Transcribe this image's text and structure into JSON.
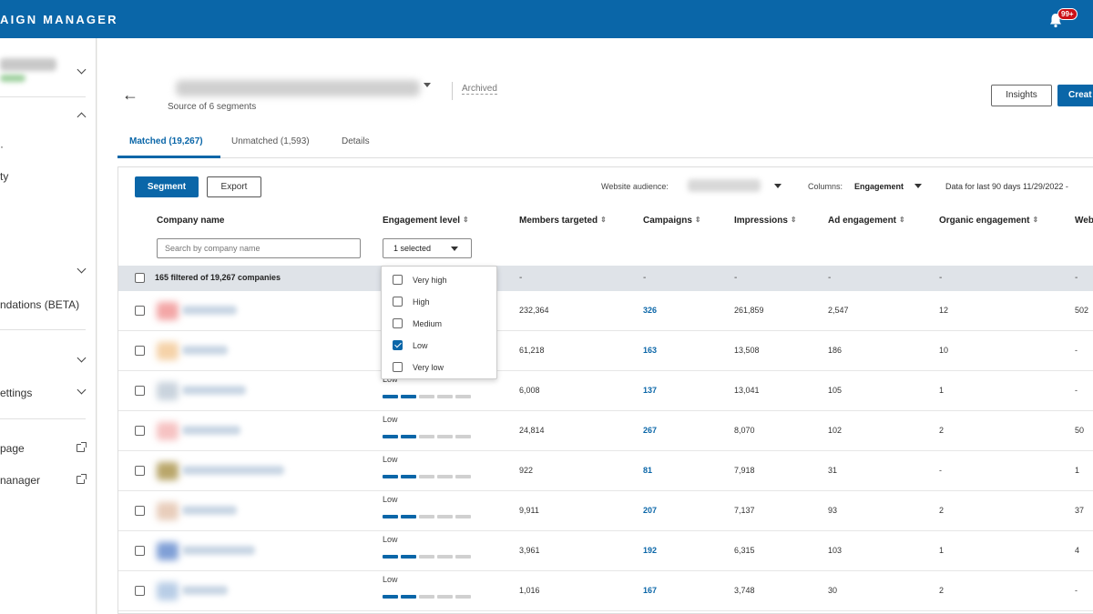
{
  "app": {
    "brand": "AIGN MANAGER",
    "notification_badge": "99+",
    "accent": "#0a66a8"
  },
  "sidebar": {
    "items": [
      {
        "label": "ndations (BETA)"
      },
      {
        "label": "ettings"
      },
      {
        "label": "page"
      },
      {
        "label": "nanager"
      },
      {
        "label": "ty"
      }
    ]
  },
  "header": {
    "archived": "Archived",
    "source": "Source of 6 segments",
    "insights_label": "Insights",
    "create_label": "Creat"
  },
  "tabs": [
    {
      "label": "Matched (19,267)"
    },
    {
      "label": "Unmatched (1,593)"
    },
    {
      "label": "Details"
    }
  ],
  "toolbar": {
    "segment_label": "Segment",
    "export_label": "Export",
    "website_audience_label": "Website audience:",
    "columns_label": "Columns:",
    "columns_value": "Engagement",
    "data_range": "Data for last 90 days 11/29/2022 -"
  },
  "table": {
    "columns": [
      "Company name",
      "Engagement level",
      "Members targeted",
      "Campaigns",
      "Impressions",
      "Ad engagement",
      "Organic engagement",
      "Web"
    ],
    "search_placeholder": "Search by company name",
    "engagement_filter_value": "1 selected",
    "filter_summary": "165 filtered of 19,267 companies",
    "dash": "-",
    "rows": [
      {
        "engagement": "",
        "members": "232,364",
        "campaigns": "326",
        "impressions": "261,859",
        "ad": "2,547",
        "organic": "12",
        "web": "502"
      },
      {
        "engagement": "",
        "members": "61,218",
        "campaigns": "163",
        "impressions": "13,508",
        "ad": "186",
        "organic": "10",
        "web": "-"
      },
      {
        "engagement": "Low",
        "members": "6,008",
        "campaigns": "137",
        "impressions": "13,041",
        "ad": "105",
        "organic": "1",
        "web": "-"
      },
      {
        "engagement": "Low",
        "members": "24,814",
        "campaigns": "267",
        "impressions": "8,070",
        "ad": "102",
        "organic": "2",
        "web": "50"
      },
      {
        "engagement": "Low",
        "members": "922",
        "campaigns": "81",
        "impressions": "7,918",
        "ad": "31",
        "organic": "-",
        "web": "1"
      },
      {
        "engagement": "Low",
        "members": "9,911",
        "campaigns": "207",
        "impressions": "7,137",
        "ad": "93",
        "organic": "2",
        "web": "37"
      },
      {
        "engagement": "Low",
        "members": "3,961",
        "campaigns": "192",
        "impressions": "6,315",
        "ad": "103",
        "organic": "1",
        "web": "4"
      },
      {
        "engagement": "Low",
        "members": "1,016",
        "campaigns": "167",
        "impressions": "3,748",
        "ad": "30",
        "organic": "2",
        "web": "-"
      }
    ],
    "engagement_bars": {
      "filled": 2,
      "total": 5,
      "filled_color": "#0a66a8",
      "empty_color": "#d0d0d0"
    }
  },
  "engagement_dropdown": {
    "options": [
      {
        "label": "Very high",
        "checked": false
      },
      {
        "label": "High",
        "checked": false
      },
      {
        "label": "Medium",
        "checked": false
      },
      {
        "label": "Low",
        "checked": true
      },
      {
        "label": "Very low",
        "checked": false
      }
    ]
  },
  "icons": {
    "back": "back-arrow-icon",
    "bell": "bell-icon",
    "sort": "sort-icon",
    "external": "external-link-icon"
  }
}
